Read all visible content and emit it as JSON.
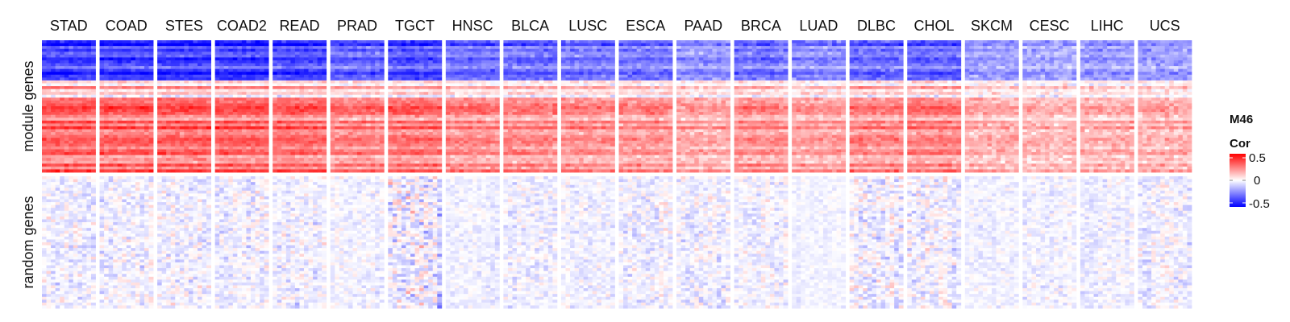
{
  "chart_data": {
    "type": "heatmap",
    "title": "",
    "column_groups": [
      "STAD",
      "COAD",
      "STES",
      "COAD2",
      "READ",
      "PRAD",
      "TGCT",
      "HNSC",
      "BLCA",
      "LUSC",
      "ESCA",
      "PAAD",
      "BRCA",
      "LUAD",
      "DLBC",
      "CHOL",
      "SKCM",
      "CESC",
      "LIHC",
      "UCS"
    ],
    "row_groups": [
      "module genes",
      "random genes"
    ],
    "legend": {
      "title_line1": "M46",
      "title_line2": "Cor",
      "ticks": [
        "0.5",
        "0",
        "-0.5"
      ],
      "range": [
        -0.5,
        0.5
      ],
      "colors": {
        "low": "#0000ff",
        "mid": "#ffffff",
        "high": "#ff0000"
      },
      "placement": "right"
    },
    "cells_per_block": {
      "rows": 46,
      "cols": 12
    },
    "block_intensity": {
      "module genes": [
        1.0,
        1.0,
        1.0,
        1.0,
        0.95,
        0.8,
        0.9,
        0.75,
        0.75,
        0.7,
        0.7,
        0.55,
        0.7,
        0.6,
        0.75,
        0.8,
        0.5,
        0.45,
        0.5,
        0.5
      ],
      "random genes": [
        0.35,
        0.35,
        0.35,
        0.35,
        0.35,
        0.25,
        0.6,
        0.2,
        0.3,
        0.25,
        0.35,
        0.35,
        0.3,
        0.15,
        0.45,
        0.4,
        0.2,
        0.25,
        0.25,
        0.35
      ]
    }
  }
}
